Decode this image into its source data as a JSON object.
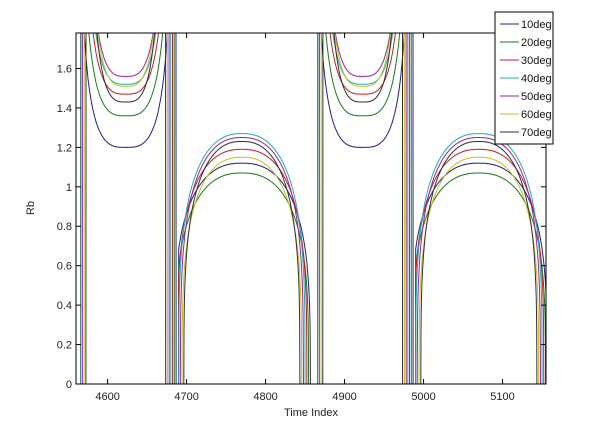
{
  "chart_data": {
    "type": "line",
    "title": "",
    "xlabel": "Time Index",
    "ylabel": "Rb",
    "xlim": [
      4560,
      5155
    ],
    "ylim": [
      0,
      1.78
    ],
    "xticks": [
      4600,
      4700,
      4800,
      4900,
      5000,
      5100
    ],
    "yticks": [
      0,
      0.2,
      0.4,
      0.6,
      0.8,
      1,
      1.2,
      1.4,
      1.6
    ],
    "xtick_labels": [
      "4600",
      "4700",
      "4800",
      "4900",
      "5000",
      "5100"
    ],
    "ytick_labels": [
      "0",
      "0.2",
      "0.4",
      "0.6",
      "0.8",
      "1",
      "1.2",
      "1.4",
      "1.6"
    ],
    "grid": false,
    "legend_position": "top-right",
    "period": 300,
    "high_lobe": {
      "start": 4566,
      "end": 4680
    },
    "low_lobe": {
      "start": 4690,
      "end": 4850
    },
    "series": [
      {
        "name": "10deg",
        "color": "#1f1f8f",
        "min_high": 1.2,
        "max_low": 1.12
      },
      {
        "name": "20deg",
        "color": "#1a7a1a",
        "min_high": 1.36,
        "max_low": 1.07
      },
      {
        "name": "30deg",
        "color": "#c02020",
        "min_high": 1.47,
        "max_low": 1.19
      },
      {
        "name": "40deg",
        "color": "#20b0b0",
        "min_high": 1.52,
        "max_low": 1.27
      },
      {
        "name": "50deg",
        "color": "#a020a0",
        "min_high": 1.56,
        "max_low": 1.25
      },
      {
        "name": "60deg",
        "color": "#c8c020",
        "min_high": 1.51,
        "max_low": 1.15
      },
      {
        "name": "70deg",
        "color": "#303030",
        "min_high": 1.43,
        "max_low": 1.23
      }
    ]
  }
}
